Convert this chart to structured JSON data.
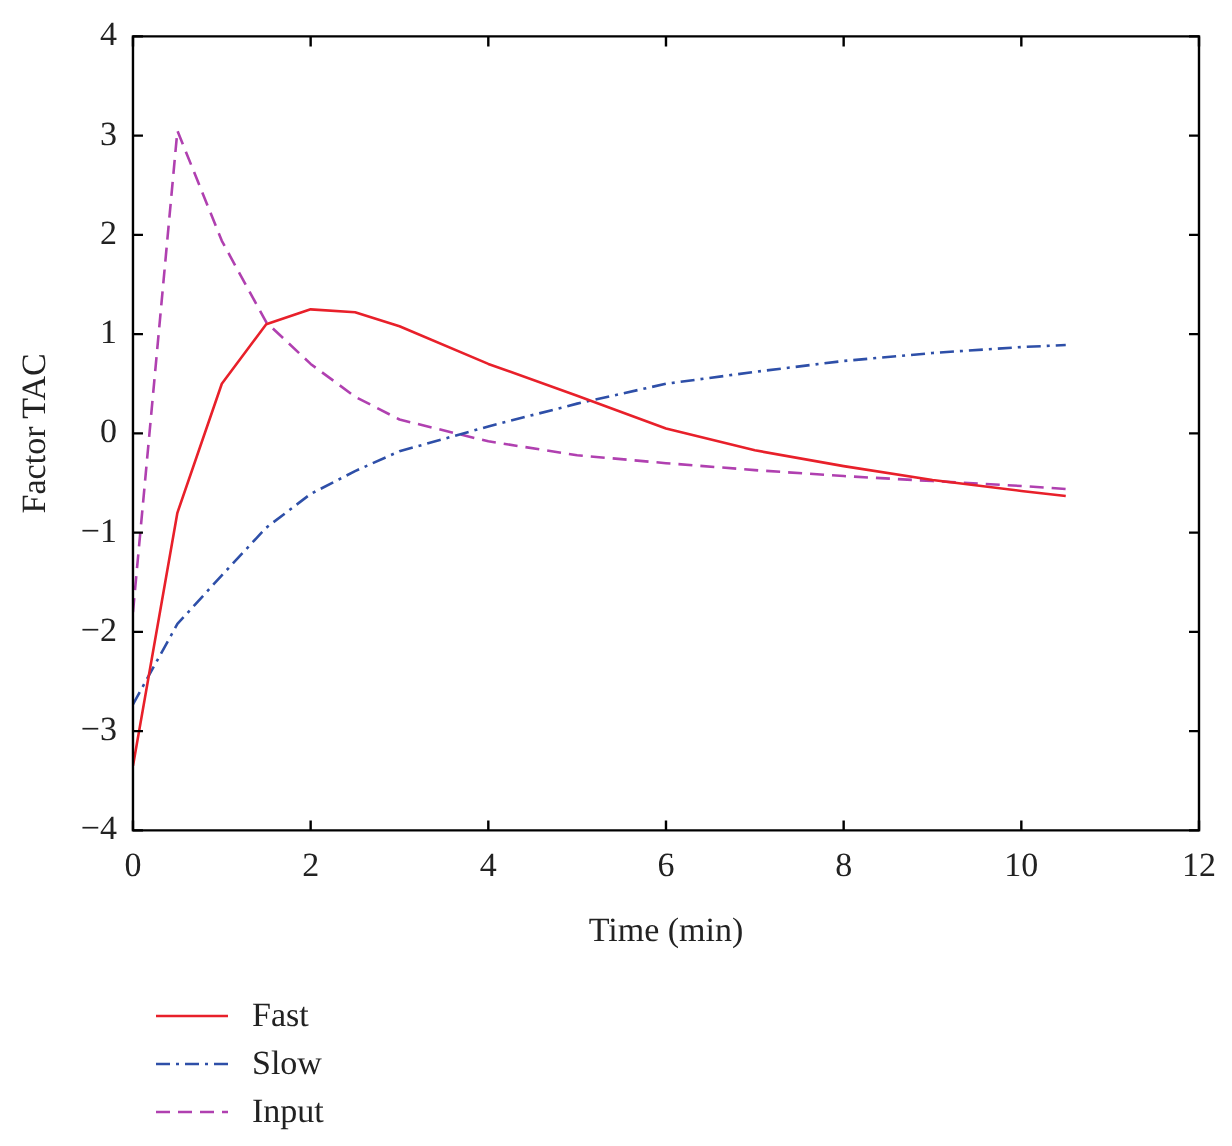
{
  "chart_data": {
    "type": "line",
    "xlabel": "Time (min)",
    "ylabel": "Factor TAC",
    "xlim": [
      0,
      12
    ],
    "xticks": [
      0,
      2,
      4,
      6,
      8,
      10,
      12
    ],
    "ylim": [
      -4,
      4
    ],
    "yticks": [
      -4,
      -3,
      -2,
      -1,
      0,
      1,
      2,
      3,
      4
    ],
    "grid": false,
    "legend": "bottom left",
    "marker": "none",
    "x": [
      0,
      0.5,
      1,
      1.5,
      2,
      2.5,
      3,
      4,
      5,
      6,
      7,
      8,
      9,
      10,
      10.5
    ],
    "series": [
      {
        "name": "Fast",
        "color": "#e8202a",
        "line_style": "solid",
        "values": [
          -3.35,
          -0.8,
          0.5,
          1.1,
          1.25,
          1.22,
          1.08,
          0.7,
          0.38,
          0.05,
          -0.17,
          -0.33,
          -0.47,
          -0.58,
          -0.63
        ]
      },
      {
        "name": "Slow",
        "color": "#2e4fa8",
        "line_style": "dashdot",
        "values": [
          -2.73,
          -1.92,
          -1.43,
          -0.95,
          -0.61,
          -0.38,
          -0.18,
          0.07,
          0.3,
          0.5,
          0.62,
          0.73,
          0.81,
          0.87,
          0.89
        ]
      },
      {
        "name": "Input",
        "color": "#b040b0",
        "line_style": "dashed",
        "values": [
          -1.8,
          3.05,
          1.94,
          1.12,
          0.7,
          0.37,
          0.14,
          -0.08,
          -0.22,
          -0.3,
          -0.37,
          -0.43,
          -0.48,
          -0.53,
          -0.56
        ]
      }
    ]
  }
}
